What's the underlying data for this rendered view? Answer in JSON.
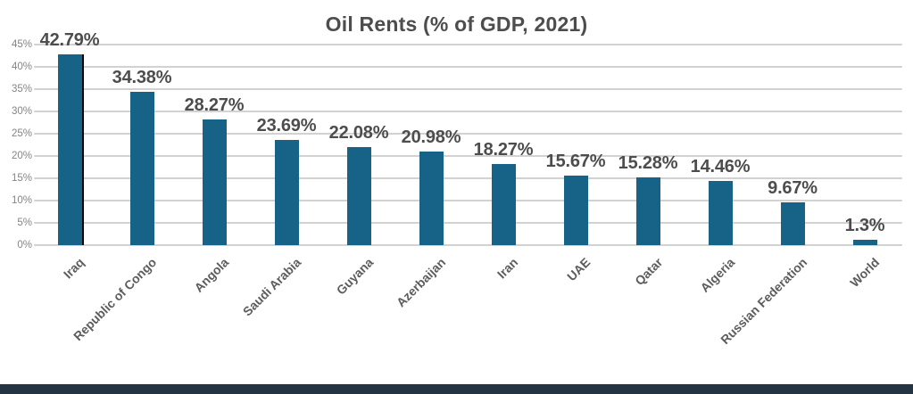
{
  "chart_data": {
    "type": "bar",
    "title": "Oil Rents (% of GDP, 2021)",
    "categories": [
      "Iraq",
      "Republic of Congo",
      "Angola",
      "Saudi Arabia",
      "Guyana",
      "Azerbaijan",
      "Iran",
      "UAE",
      "Qatar",
      "Algeria",
      "Russian Federation",
      "World"
    ],
    "values": [
      42.79,
      34.38,
      28.27,
      23.69,
      22.08,
      20.98,
      18.27,
      15.67,
      15.28,
      14.46,
      9.67,
      1.3
    ],
    "value_labels": [
      "42.79%",
      "34.38%",
      "28.27%",
      "23.69%",
      "22.08%",
      "20.98%",
      "18.27%",
      "15.67%",
      "15.28%",
      "14.46%",
      "9.67%",
      "1.3%"
    ],
    "xlabel": "",
    "ylabel": "",
    "ylim": [
      0,
      45
    ],
    "yticks": [
      0,
      5,
      10,
      15,
      20,
      25,
      30,
      35,
      40,
      45
    ],
    "ytick_labels": [
      "0%",
      "5%",
      "10%",
      "15%",
      "20%",
      "25%",
      "30%",
      "35%",
      "40%",
      "45%"
    ],
    "grid": true,
    "legend": "none",
    "colors": {
      "bar": "#176287",
      "title": "#4d4d4d",
      "value_label": "#4d4d4d",
      "xtick_label": "#5c5c5c",
      "ytick_label": "#858585",
      "gridline": "#d2d2d2",
      "marker_line": "#0a0a0a",
      "footer_bar": "#243442"
    }
  }
}
